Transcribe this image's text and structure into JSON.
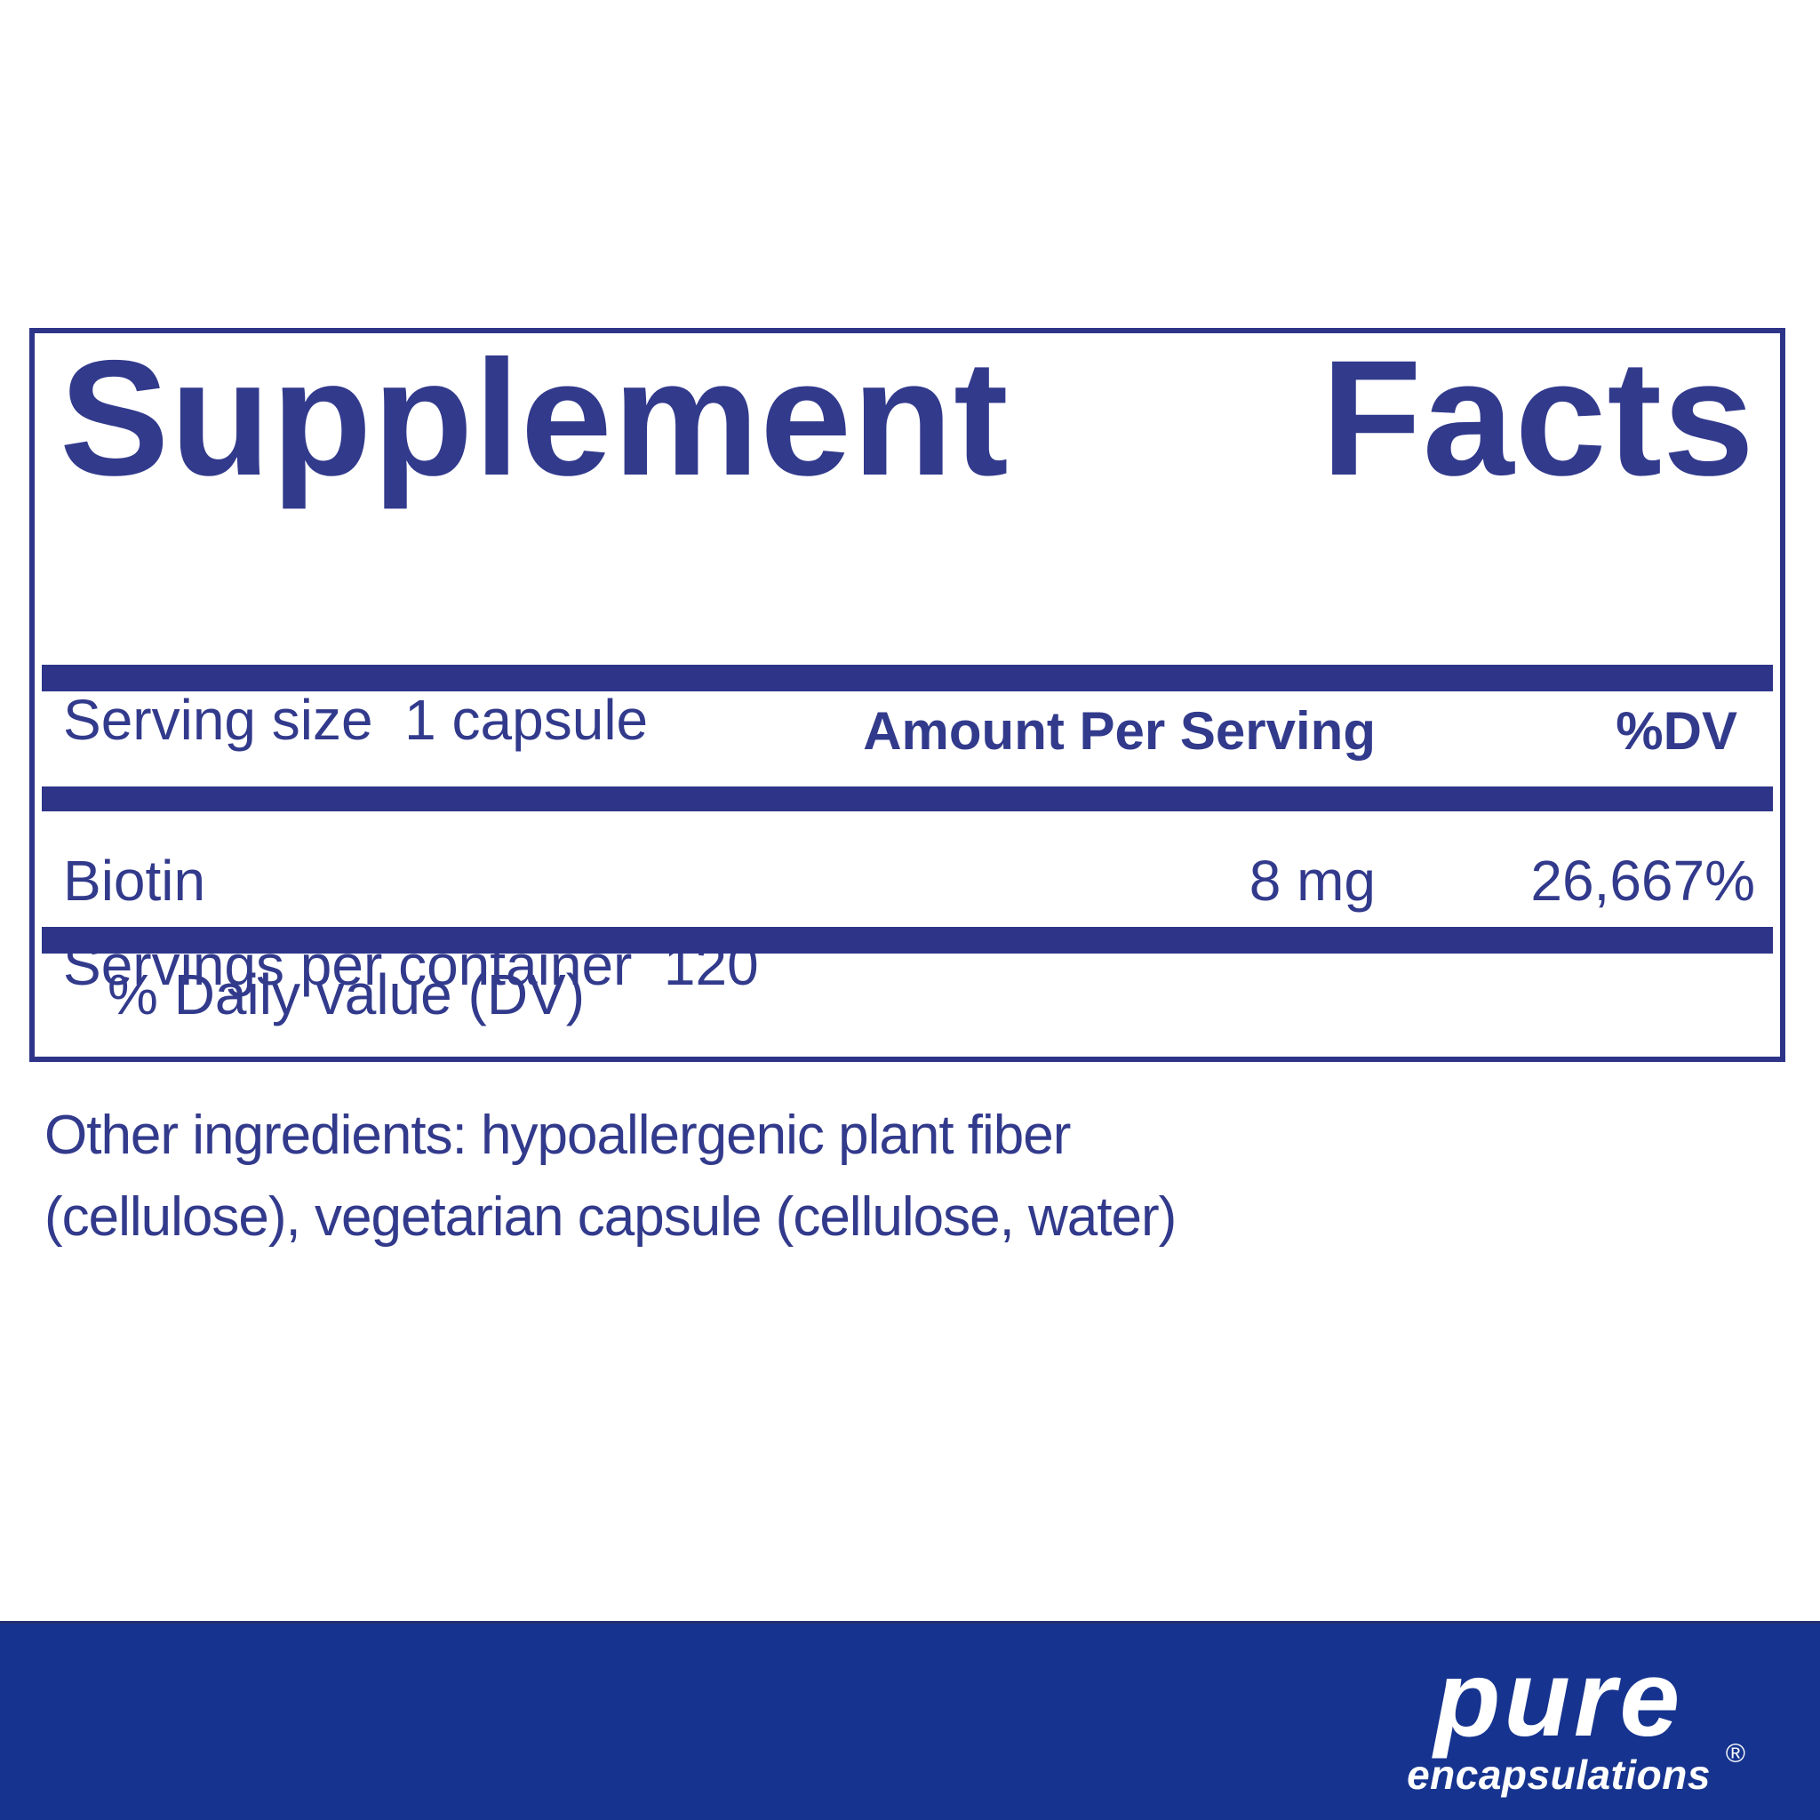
{
  "colors": {
    "text_navy": "#323a8c",
    "rule_navy": "#2e3589",
    "band_blue": "#16348f",
    "background": "#ffffff",
    "logo_white": "#ffffff"
  },
  "facts_panel": {
    "title": "Supplement Facts",
    "title_parts": [
      "Supplement",
      "Facts"
    ],
    "serving_size_line": "Serving size  1 capsule",
    "servings_per_container_line": "Servings per container  120",
    "columns": {
      "amount_header": "Amount Per Serving",
      "dv_header": "%DV"
    },
    "rows": [
      {
        "name": "Biotin",
        "amount": "8 mg",
        "dv": "26,667%"
      }
    ],
    "footnote": "% Daily value (DV)"
  },
  "other_ingredients": {
    "lines": [
      "Other ingredients: hypoallergenic plant fiber",
      "(cellulose), vegetarian capsule (cellulose, water)"
    ]
  },
  "brand": {
    "name": "pure",
    "subname": "encapsulations",
    "registered_mark": "®"
  }
}
